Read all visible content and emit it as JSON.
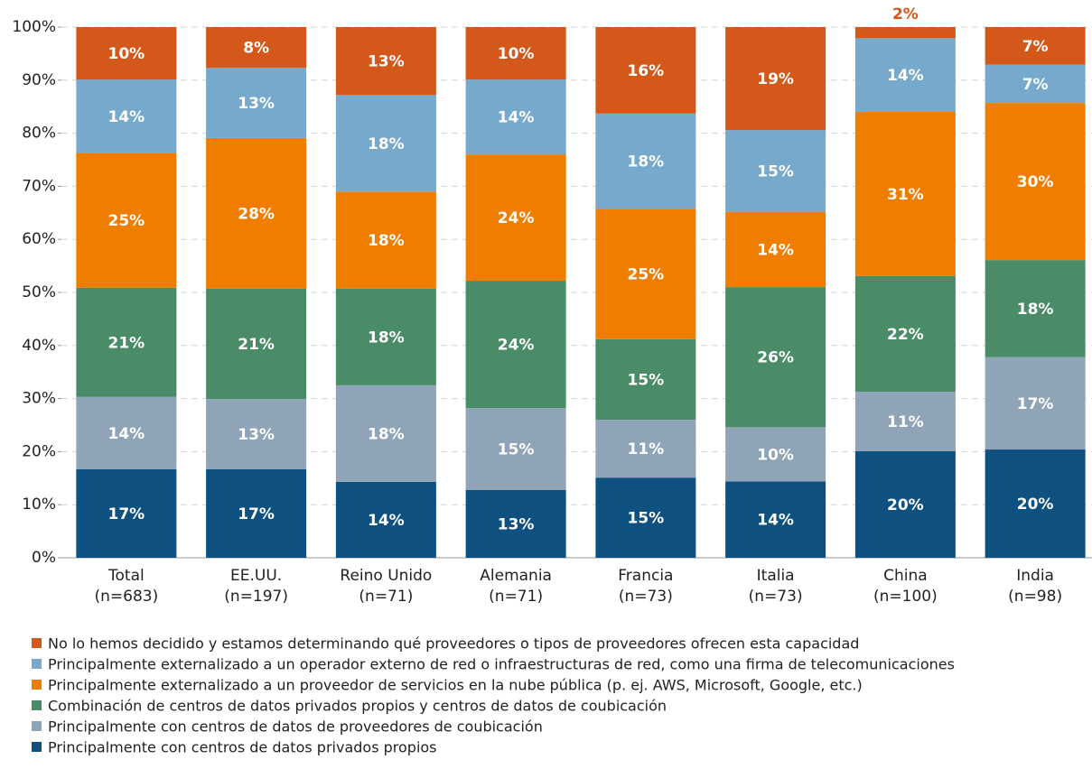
{
  "chart_data": {
    "type": "stacked_bar",
    "categories": [
      "Total",
      "EE.UU.",
      "Reino Unido",
      "Alemania",
      "Francia",
      "Italia",
      "China",
      "India"
    ],
    "sample_sizes": [
      "(n=683)",
      "(n=197)",
      "(n=71)",
      "(n=71)",
      "(n=73)",
      "(n=73)",
      "(n=100)",
      "(n=98)"
    ],
    "series": [
      {
        "name": "Principalmente con centros de datos privados propios",
        "color": "#0e5080",
        "values": [
          16.7,
          16.7,
          14.3,
          12.8,
          15.1,
          14.4,
          20.1,
          20.4
        ],
        "value_labels": [
          "17%",
          "17%",
          "14%",
          "13%",
          "15%",
          "14%",
          "20%",
          "20%"
        ]
      },
      {
        "name": "Principalmente con centros de datos de proveedores de coubicación",
        "color": "#8fa4b6",
        "values": [
          13.6,
          13.2,
          18.2,
          15.4,
          10.9,
          10.2,
          11.2,
          17.4
        ],
        "value_labels": [
          "14%",
          "13%",
          "18%",
          "15%",
          "11%",
          "10%",
          "11%",
          "17%"
        ]
      },
      {
        "name": "Combinación de centros de datos privados propios y centros de datos de coubicación",
        "color": "#4a8c68",
        "values": [
          20.6,
          20.8,
          18.2,
          24.0,
          15.2,
          26.4,
          21.8,
          18.3
        ],
        "value_labels": [
          "21%",
          "21%",
          "18%",
          "24%",
          "15%",
          "26%",
          "22%",
          "18%"
        ]
      },
      {
        "name": "Principalmente externalizado a un proveedor de servicios en la nube pública (p. ej. AWS, Microsoft, Google, etc.)",
        "color": "#ef7d00",
        "values": [
          25.4,
          28.4,
          18.3,
          23.8,
          24.6,
          14.2,
          30.9,
          29.6
        ],
        "value_labels": [
          "25%",
          "28%",
          "18%",
          "24%",
          "25%",
          "14%",
          "31%",
          "30%"
        ]
      },
      {
        "name": "Principalmente externalizado a un operador externo de red o infraestructuras de red, como una firma de telecomunicaciones",
        "color": "#77a9cc",
        "values": [
          13.8,
          13.2,
          18.2,
          14.1,
          17.9,
          15.4,
          13.9,
          7.2
        ],
        "value_labels": [
          "14%",
          "13%",
          "18%",
          "14%",
          "18%",
          "15%",
          "14%",
          "7%"
        ]
      },
      {
        "name": "No lo hemos decidido y estamos determinando qué proveedores o tipos de proveedores ofrecen esta capacidad",
        "color": "#d4581a",
        "values": [
          9.9,
          7.7,
          12.8,
          9.9,
          16.3,
          19.4,
          2.1,
          7.1
        ],
        "value_labels": [
          "10%",
          "8%",
          "13%",
          "10%",
          "16%",
          "19%",
          "2%",
          "7%"
        ]
      }
    ],
    "ylim": [
      0,
      100
    ],
    "yticks": [
      {
        "value": 0,
        "label": "0%"
      },
      {
        "value": 10,
        "label": "10%"
      },
      {
        "value": 20,
        "label": "20%"
      },
      {
        "value": 30,
        "label": "30%"
      },
      {
        "value": 40,
        "label": "40%"
      },
      {
        "value": 50,
        "label": "50%"
      },
      {
        "value": 60,
        "label": "60%"
      },
      {
        "value": 70,
        "label": "70%"
      },
      {
        "value": 80,
        "label": "80%"
      },
      {
        "value": 90,
        "label": "90%"
      },
      {
        "value": 100,
        "label": "100%"
      }
    ],
    "grid": true
  }
}
